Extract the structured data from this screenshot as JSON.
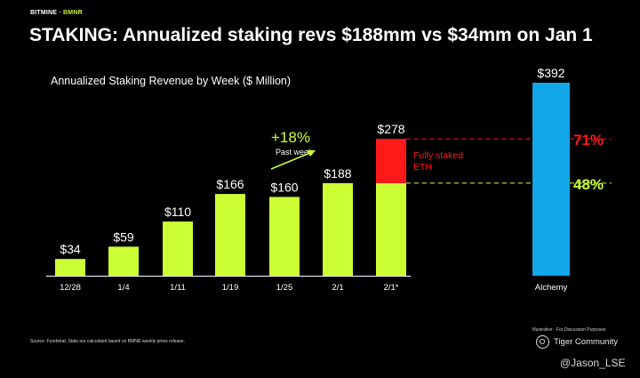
{
  "brand": {
    "name": "BITMINE",
    "separator": "·",
    "ticker": "BMNR"
  },
  "headline": "STAKING: Annualized staking revs $188mm vs $34mm on Jan 1",
  "source_note": "Source: Fundstrat, Stats are calculated based on BMNR weekly press release.",
  "disclaimer": "Illustrative · For Discussion Purposes",
  "watermark": {
    "name": "Tiger Community",
    "icon": "tiger-community-logo-icon"
  },
  "handle": "@Jason_LSE",
  "chart_data": {
    "type": "bar",
    "title": "Annualized Staking Revenue by Week ($ Million)",
    "unit": "$ Million",
    "categories": [
      "12/28",
      "1/4",
      "1/11",
      "1/19",
      "1/25",
      "2/1",
      "2/1*",
      "Alchemy"
    ],
    "values": [
      34,
      59,
      110,
      166,
      160,
      188,
      278,
      392
    ],
    "data_labels": [
      "$34",
      "$59",
      "$110",
      "$166",
      "$160",
      "$188",
      "$278",
      "$392"
    ],
    "stacked_segment": {
      "category": "2/1*",
      "base": 188,
      "top": 278,
      "label_line1": "Fully staked",
      "label_line2": "ETH",
      "color": "#ff1a1a"
    },
    "colors": {
      "bar": "#ccff33",
      "alchemy": "#12a7e8",
      "staked": "#ff1a1a",
      "pct_green": "#ccff33",
      "pct_red": "#ff1a1a"
    },
    "reference_lines": [
      {
        "value": 278,
        "label": "71%",
        "color": "#ff1a1a",
        "style": "dashed"
      },
      {
        "value": 188,
        "label": "48%",
        "color": "#ccff33",
        "style": "dashed"
      }
    ],
    "annotation": {
      "text": "+18%",
      "subtext": "Past week",
      "arrow": true
    },
    "ylim": [
      0,
      392
    ],
    "grid": false,
    "legend": "none"
  }
}
